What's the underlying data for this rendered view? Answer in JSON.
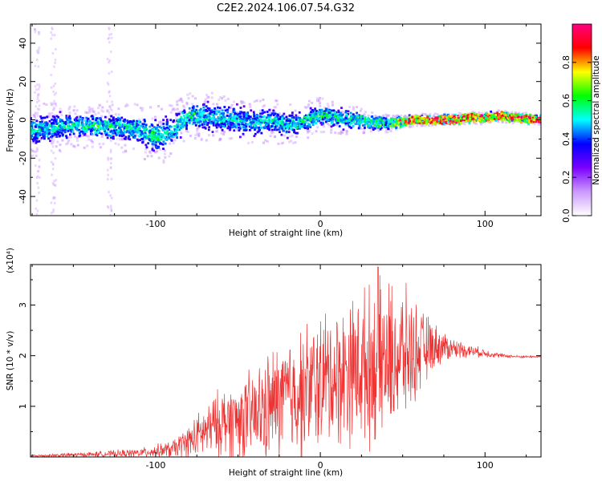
{
  "title": "C2E2.2024.106.07.54.G32",
  "chart_data": [
    {
      "type": "heatmap",
      "xlabel": "Height of straight line (km)",
      "ylabel": "Frequency (Hz)",
      "xlim": [
        -176,
        134
      ],
      "ylim": [
        -50,
        50
      ],
      "xticks": [
        -100,
        0,
        100
      ],
      "yticks": [
        -40,
        -20,
        0,
        20,
        40
      ],
      "colorbar": {
        "label": "Normalized spectral amplitude",
        "range": [
          0,
          1
        ],
        "ticks": [
          0.0,
          0.2,
          0.4,
          0.6,
          0.8
        ],
        "colors": [
          "#ffffff",
          "#cc99ff",
          "#7a00ff",
          "#0000ff",
          "#00ffff",
          "#00ff00",
          "#ffff00",
          "#ff0000",
          "#ff0080"
        ]
      },
      "ridge": {
        "x": [
          -176,
          -160,
          -140,
          -120,
          -110,
          -100,
          -90,
          -80,
          -70,
          -60,
          -50,
          -40,
          -30,
          -20,
          -10,
          0,
          10,
          20,
          30,
          40,
          50,
          60,
          70,
          80,
          90,
          100,
          110,
          120,
          134
        ],
        "freq": [
          -5,
          -4,
          -3,
          -4,
          -5,
          -9,
          -6,
          2,
          2,
          1,
          0,
          -2,
          0,
          -3,
          -1,
          3,
          1,
          0,
          -1,
          -2,
          -1,
          0,
          0,
          0,
          1,
          1,
          2,
          1,
          0
        ],
        "spread": [
          9,
          8,
          7,
          8,
          9,
          10,
          9,
          8,
          8,
          8,
          8,
          8,
          7,
          7,
          6,
          6,
          5,
          5,
          4,
          3,
          2,
          2,
          2,
          2,
          2,
          2,
          2,
          2,
          2
        ],
        "amplitude": [
          0.35,
          0.35,
          0.4,
          0.35,
          0.35,
          0.4,
          0.35,
          0.4,
          0.35,
          0.35,
          0.35,
          0.35,
          0.35,
          0.35,
          0.4,
          0.4,
          0.4,
          0.4,
          0.45,
          0.45,
          0.7,
          0.8,
          0.85,
          0.85,
          0.85,
          0.85,
          0.85,
          0.85,
          0.85
        ]
      }
    },
    {
      "type": "line",
      "xlabel": "Height of straight line (km)",
      "ylabel": "SNR (10 * v/v)",
      "y_multiplier": "(x10⁴)",
      "xlim": [
        -176,
        134
      ],
      "ylim": [
        0,
        3.8
      ],
      "xticks": [
        -100,
        0,
        100
      ],
      "yticks": [
        1,
        2,
        3
      ],
      "color": "#ee3333",
      "envelope": {
        "x": [
          -176,
          -140,
          -110,
          -90,
          -80,
          -70,
          -60,
          -50,
          -40,
          -30,
          -20,
          -10,
          0,
          10,
          20,
          30,
          40,
          50,
          60,
          70,
          80,
          90,
          100,
          110,
          120,
          134
        ],
        "mean": [
          0.02,
          0.05,
          0.08,
          0.15,
          0.3,
          0.5,
          0.7,
          0.75,
          0.8,
          1.0,
          1.2,
          1.3,
          1.5,
          1.6,
          1.75,
          1.8,
          1.9,
          2.0,
          2.1,
          2.2,
          2.15,
          2.1,
          2.05,
          2.0,
          1.98,
          1.98
        ],
        "amp": [
          0.03,
          0.06,
          0.1,
          0.2,
          0.4,
          0.6,
          0.8,
          0.9,
          1.1,
          1.3,
          1.4,
          1.5,
          1.6,
          1.6,
          1.7,
          1.8,
          1.8,
          1.6,
          1.0,
          0.5,
          0.25,
          0.15,
          0.1,
          0.05,
          0.03,
          0.02
        ],
        "peak": {
          "x": 35,
          "y": 3.75
        }
      }
    }
  ]
}
